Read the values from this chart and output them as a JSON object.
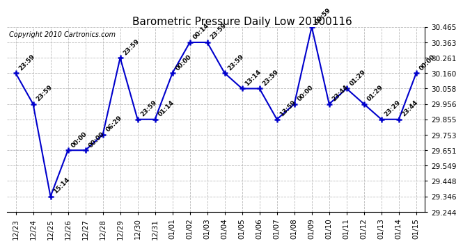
{
  "title": "Barometric Pressure Daily Low 20100116",
  "copyright": "Copyright 2010 Cartronics.com",
  "x_labels": [
    "12/23",
    "12/24",
    "12/25",
    "12/26",
    "12/27",
    "12/28",
    "12/29",
    "12/30",
    "12/31",
    "01/01",
    "01/02",
    "01/03",
    "01/04",
    "01/05",
    "01/06",
    "01/07",
    "01/08",
    "01/09",
    "01/10",
    "01/11",
    "01/12",
    "01/13",
    "01/14",
    "01/15"
  ],
  "y_values": [
    30.16,
    29.956,
    29.346,
    29.651,
    29.651,
    29.753,
    30.261,
    29.855,
    29.855,
    30.16,
    30.363,
    30.363,
    30.16,
    30.058,
    30.058,
    29.855,
    29.956,
    30.465,
    29.956,
    30.058,
    29.956,
    29.855,
    29.855,
    30.16
  ],
  "time_labels": [
    "23:59",
    "23:59",
    "15:14",
    "00:00",
    "00:00",
    "06:29",
    "23:59",
    "23:59",
    "01:14",
    "00:00",
    "00:14",
    "23:59",
    "23:59",
    "13:14",
    "23:59",
    "13:59",
    "00:00",
    "00:59",
    "23:44",
    "01:29",
    "01:29",
    "23:29",
    "23:44",
    "00:00"
  ],
  "ylim_min": 29.244,
  "ylim_max": 30.465,
  "yticks": [
    29.244,
    29.346,
    29.448,
    29.549,
    29.651,
    29.753,
    29.855,
    29.956,
    30.058,
    30.16,
    30.261,
    30.363,
    30.465
  ],
  "line_color": "#0000CC",
  "marker_color": "#0000CC",
  "bg_color": "#FFFFFF",
  "grid_color": "#BBBBBB",
  "title_fontsize": 11,
  "annotation_fontsize": 6.5,
  "copyright_fontsize": 7,
  "tick_fontsize": 7.5
}
